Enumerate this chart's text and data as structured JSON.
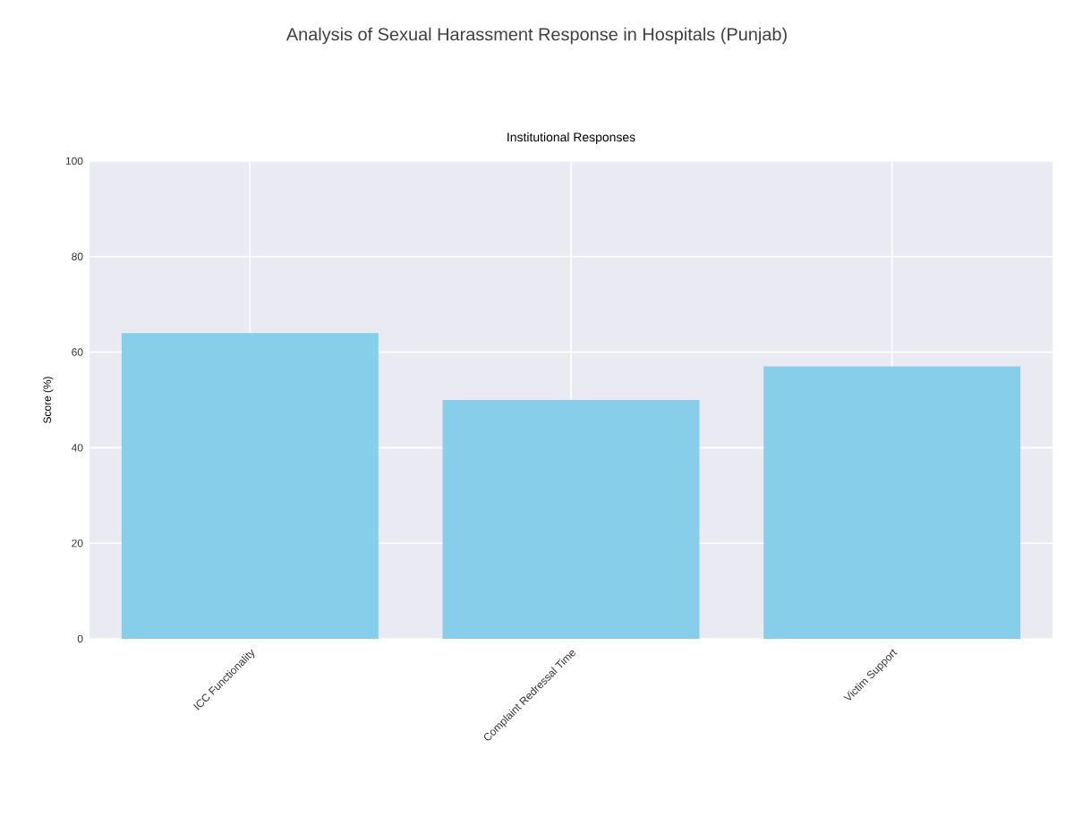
{
  "chart_data": {
    "type": "bar",
    "title": "Analysis of Sexual Harassment Response in Hospitals (Punjab)",
    "subtitle": "Institutional Responses",
    "ylabel": "Score (%)",
    "categories": [
      "ICC Functionality",
      "Complaint Redressal Time",
      "Victim Support"
    ],
    "values": [
      64,
      50,
      57
    ],
    "color": "#87ceeb",
    "ylim": [
      0,
      100
    ],
    "yticks": [
      0,
      20,
      40,
      60,
      80,
      100
    ],
    "grid": true
  }
}
